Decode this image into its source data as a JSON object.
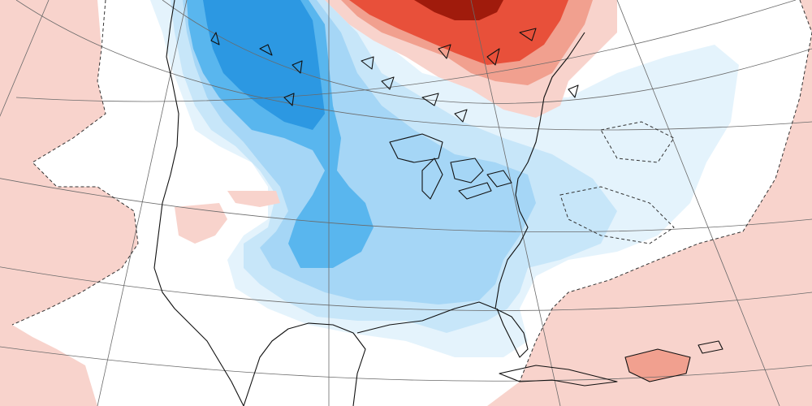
{
  "map": {
    "type": "temperature-anomaly",
    "region": "North America",
    "projection": "conic",
    "palette": {
      "background": "#ffffff",
      "warm_light": "#f8d3cc",
      "warm_medium": "#f1a08f",
      "warm_strong": "#e8503a",
      "warm_extreme": "#a01b0c",
      "cool_lightest": "#e4f3fc",
      "cool_light": "#c7e6f9",
      "cool_medium": "#a5d6f6",
      "cool_strong": "#59b6ee",
      "cool_extreme": "#2c98e2",
      "coastline": "#111111",
      "graticule": "#6a6a6a",
      "zero_contour": "#333333"
    },
    "features": [
      "graticule",
      "coastlines",
      "lakes",
      "anomaly-fill",
      "zero-anomaly-dashed-contour"
    ]
  }
}
